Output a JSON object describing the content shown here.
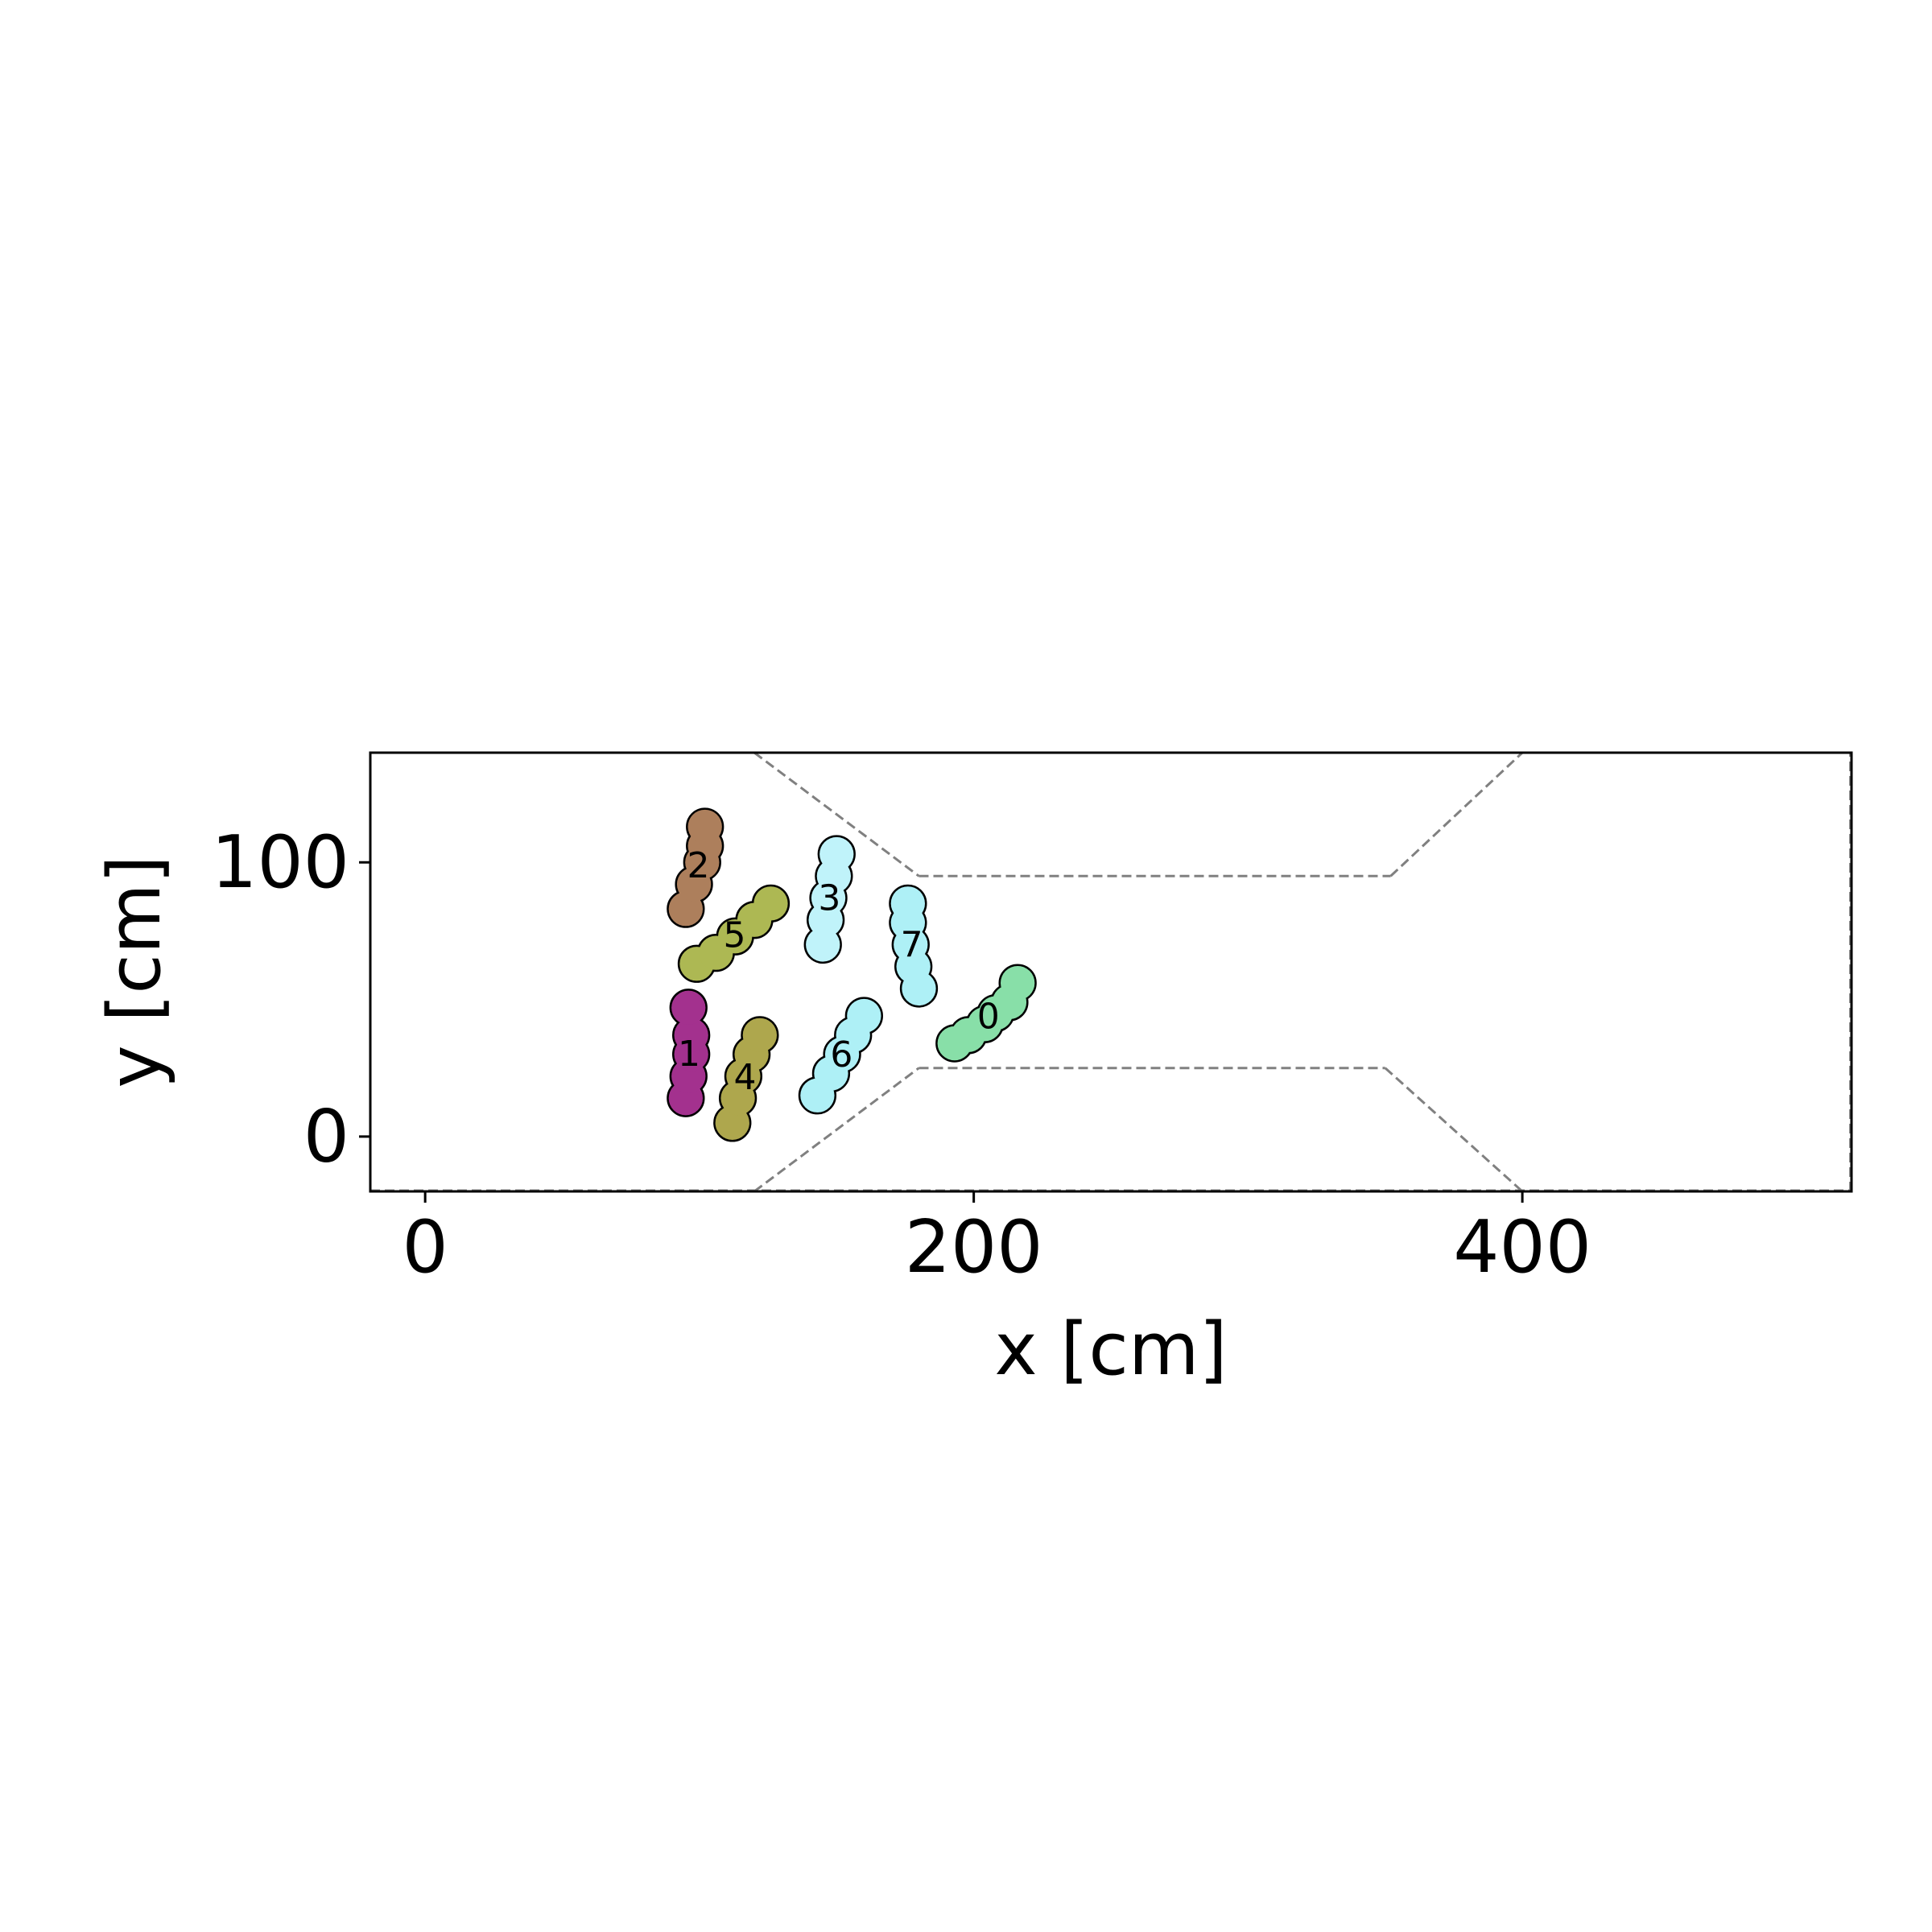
{
  "chart_data": {
    "type": "scatter",
    "title": "",
    "xlabel": "x [cm]",
    "ylabel": "y [cm]",
    "xlim": [
      -20,
      520
    ],
    "ylim": [
      -20,
      140
    ],
    "xticks": [
      0,
      200,
      400
    ],
    "yticks": [
      0,
      100
    ],
    "grid": false,
    "legend": "none",
    "boundary": [
      {
        "name": "upper-left-wall",
        "points": [
          [
            120,
            140
          ],
          [
            180,
            95
          ]
        ]
      },
      {
        "name": "upper-corridor",
        "points": [
          [
            180,
            95
          ],
          [
            352,
            95
          ]
        ]
      },
      {
        "name": "upper-right-wall",
        "points": [
          [
            352,
            95
          ],
          [
            400,
            140
          ]
        ]
      },
      {
        "name": "lower-left-wall",
        "points": [
          [
            120,
            -20
          ],
          [
            180,
            25
          ]
        ]
      },
      {
        "name": "lower-corridor",
        "points": [
          [
            180,
            25
          ],
          [
            350,
            25
          ]
        ]
      },
      {
        "name": "lower-right-wall",
        "points": [
          [
            350,
            25
          ],
          [
            400,
            -20
          ]
        ]
      },
      {
        "name": "bottom-edge",
        "points": [
          [
            -20,
            -19.7
          ],
          [
            520,
            -19.7
          ]
        ]
      },
      {
        "name": "right-edge",
        "points": [
          [
            519.6,
            -20
          ],
          [
            519.6,
            140
          ]
        ]
      }
    ],
    "agents": [
      {
        "label": "0",
        "color": "#88dfa8",
        "circles": [
          [
            193,
            34
          ],
          [
            198,
            37
          ],
          [
            204,
            41
          ],
          [
            208,
            45
          ],
          [
            213,
            49
          ],
          [
            216,
            56
          ]
        ]
      },
      {
        "label": "1",
        "color": "#a3318e",
        "circles": [
          [
            95,
            14
          ],
          [
            96,
            22
          ],
          [
            97,
            30
          ],
          [
            97,
            37
          ],
          [
            96,
            47
          ]
        ]
      },
      {
        "label": "2",
        "color": "#ad7f5c",
        "circles": [
          [
            95,
            83
          ],
          [
            98,
            92
          ],
          [
            101,
            100
          ],
          [
            102,
            106
          ],
          [
            102,
            113
          ]
        ]
      },
      {
        "label": "3",
        "color": "#c0f3fa",
        "circles": [
          [
            145,
            70
          ],
          [
            146,
            79
          ],
          [
            147,
            87
          ],
          [
            149,
            95
          ],
          [
            150,
            103
          ]
        ]
      },
      {
        "label": "4",
        "color": "#aea74d",
        "circles": [
          [
            112,
            5
          ],
          [
            114,
            14
          ],
          [
            116,
            22
          ],
          [
            119,
            30
          ],
          [
            122,
            37
          ]
        ]
      },
      {
        "label": "5",
        "color": "#adb853",
        "circles": [
          [
            99,
            63
          ],
          [
            106,
            67
          ],
          [
            113,
            73
          ],
          [
            120,
            79
          ],
          [
            126,
            85
          ]
        ]
      },
      {
        "label": "6",
        "color": "#aef0f6",
        "circles": [
          [
            143,
            15
          ],
          [
            148,
            23
          ],
          [
            152,
            30
          ],
          [
            156,
            37
          ],
          [
            160,
            44
          ]
        ]
      },
      {
        "label": "7",
        "color": "#aef0f6",
        "circles": [
          [
            180,
            54
          ],
          [
            178,
            62
          ],
          [
            177,
            70
          ],
          [
            176,
            78
          ],
          [
            176,
            85
          ]
        ]
      }
    ]
  }
}
